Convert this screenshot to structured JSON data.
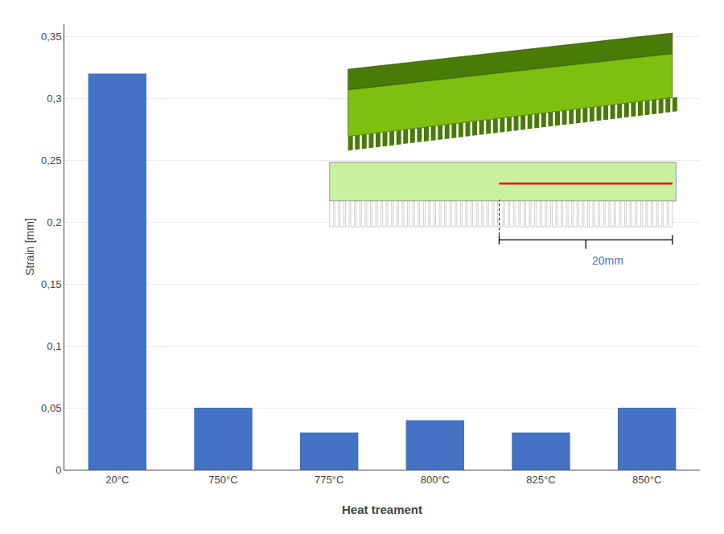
{
  "chart_data": {
    "type": "bar",
    "categories": [
      "20°C",
      "750°C",
      "775°C",
      "800°C",
      "825°C",
      "850°C"
    ],
    "values": [
      0.32,
      0.05,
      0.03,
      0.04,
      0.03,
      0.05
    ],
    "color": "#4472C4",
    "xlabel": "Heat treament",
    "ylabel": "Strain [mm]",
    "ylim": [
      0,
      0.36
    ],
    "yticks": [
      0,
      {
        "value": 0.05,
        "label": "0,05"
      },
      {
        "value": 0.1,
        "label": "0,1"
      },
      {
        "value": 0.15,
        "label": "0,15"
      },
      {
        "value": 0.2,
        "label": "0,2"
      },
      {
        "value": 0.25,
        "label": "0,25"
      },
      {
        "value": 0.3,
        "label": "0,3"
      },
      {
        "value": 0.35,
        "label": "0,35"
      }
    ],
    "grid": true,
    "annotations": [
      {
        "text": "20mm",
        "color": "#4472C4"
      }
    ]
  }
}
